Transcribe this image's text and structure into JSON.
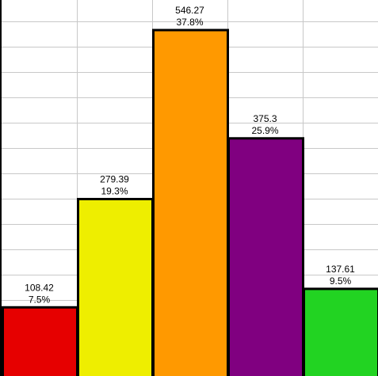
{
  "chart_data": {
    "type": "bar",
    "title": "",
    "xlabel": "",
    "ylabel": "",
    "categories": [
      "",
      "",
      "",
      "",
      ""
    ],
    "values": [
      108.42,
      279.39,
      546.27,
      375.3,
      137.61
    ],
    "percent_labels": [
      "7.5%",
      "19.3%",
      "37.8%",
      "25.9%",
      "9.5%"
    ],
    "value_labels": [
      "108.42",
      "279.39",
      "546.27",
      "375.3",
      "137.61"
    ],
    "colors": [
      "#e60000",
      "#eeee00",
      "#ff9900",
      "#800080",
      "#22d322"
    ],
    "ylim": [
      0,
      600
    ],
    "y_grid_step": 40,
    "grid": true,
    "legend": "none"
  }
}
